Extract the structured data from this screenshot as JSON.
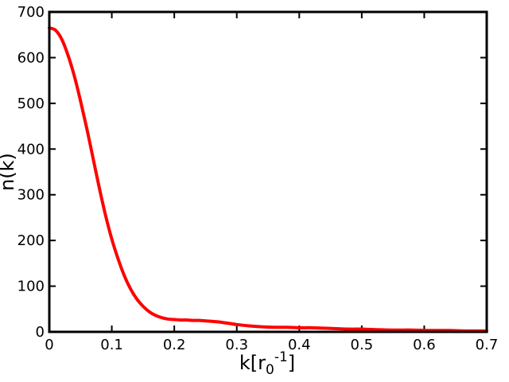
{
  "chart_data": {
    "type": "line",
    "title": "",
    "xlabel": "k[r0-1]",
    "xlabel_parts": {
      "base": "k[r",
      "sub": "0",
      "sup": "-1",
      "close": "]"
    },
    "ylabel": "n(k)",
    "xlim": [
      0,
      0.7
    ],
    "ylim": [
      0,
      700
    ],
    "xticks": [
      0,
      0.1,
      0.2,
      0.3,
      0.4,
      0.5,
      0.6,
      0.7
    ],
    "xtick_labels": [
      "0",
      "0.1",
      "0.2",
      "0.3",
      "0.4",
      "0.5",
      "0.6",
      "0.7"
    ],
    "yticks": [
      0,
      100,
      200,
      300,
      400,
      500,
      600,
      700
    ],
    "ytick_labels": [
      "0",
      "100",
      "200",
      "300",
      "400",
      "500",
      "600",
      "700"
    ],
    "grid": false,
    "series": [
      {
        "color": "#ff0000",
        "x": [
          0,
          0.01,
          0.02,
          0.03,
          0.04,
          0.05,
          0.06,
          0.07,
          0.08,
          0.09,
          0.1,
          0.11,
          0.12,
          0.13,
          0.14,
          0.15,
          0.16,
          0.17,
          0.18,
          0.19,
          0.2,
          0.21,
          0.22,
          0.23,
          0.24,
          0.25,
          0.26,
          0.27,
          0.28,
          0.29,
          0.3,
          0.32,
          0.34,
          0.36,
          0.38,
          0.4,
          0.42,
          0.44,
          0.46,
          0.48,
          0.5,
          0.52,
          0.55,
          0.58,
          0.61,
          0.64,
          0.67,
          0.7
        ],
        "y": [
          665,
          660,
          640,
          605,
          560,
          505,
          445,
          380,
          315,
          255,
          203,
          160,
          123,
          94,
          72,
          56,
          44,
          36,
          31,
          28,
          27,
          26,
          26,
          25,
          25,
          24,
          23,
          22,
          20,
          18,
          16,
          13,
          11,
          10,
          10,
          9,
          9,
          8,
          7,
          6,
          6,
          5,
          4,
          4,
          3,
          3,
          2,
          2
        ]
      }
    ]
  }
}
